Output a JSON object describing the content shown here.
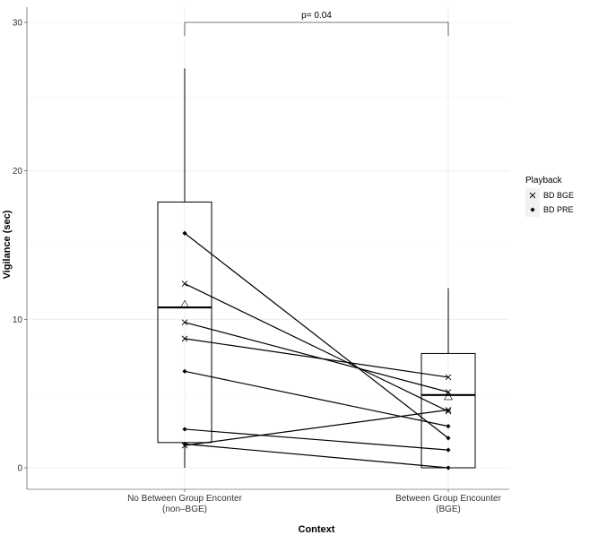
{
  "chart_data": {
    "type": "box",
    "xlabel": "Context",
    "ylabel": "Vigilance (sec)",
    "ylim": [
      -1.5,
      30.5
    ],
    "yticks": [
      "0",
      "10",
      "20",
      "30"
    ],
    "grid": true,
    "categories": [
      {
        "line1": "No Between Group Enconter",
        "line2": "(non–BGE)"
      },
      {
        "line1": "Between Group Encounter",
        "line2": "(BGE)"
      }
    ],
    "boxes": [
      {
        "q1": 1.7,
        "median": 10.8,
        "q3": 17.9,
        "whisker_low": 0,
        "whisker_high": 26.9,
        "mean": 11.0
      },
      {
        "q1": 0,
        "median": 4.9,
        "q3": 7.7,
        "whisker_low": 0,
        "whisker_high": 12.1,
        "mean": 4.8
      }
    ],
    "paired_lines": [
      {
        "playback": "BD PRE",
        "values": [
          15.8,
          2.0
        ]
      },
      {
        "playback": "BD BGE",
        "values": [
          12.4,
          3.8
        ]
      },
      {
        "playback": "BD BGE",
        "values": [
          9.8,
          5.1
        ]
      },
      {
        "playback": "BD BGE",
        "values": [
          8.7,
          6.1
        ]
      },
      {
        "playback": "BD PRE",
        "values": [
          6.5,
          2.8
        ]
      },
      {
        "playback": "BD PRE",
        "values": [
          2.6,
          1.2
        ]
      },
      {
        "playback": "BD PRE",
        "values": [
          1.6,
          0.0
        ]
      },
      {
        "playback": "BD BGE",
        "values": [
          1.5,
          3.9
        ]
      }
    ],
    "significance": {
      "label": "p= 0.04"
    },
    "legend": {
      "title": "Playback",
      "placement": "right",
      "entries": [
        {
          "label": "BD BGE",
          "marker": "cross"
        },
        {
          "label": "BD PRE",
          "marker": "diamond"
        }
      ]
    }
  }
}
